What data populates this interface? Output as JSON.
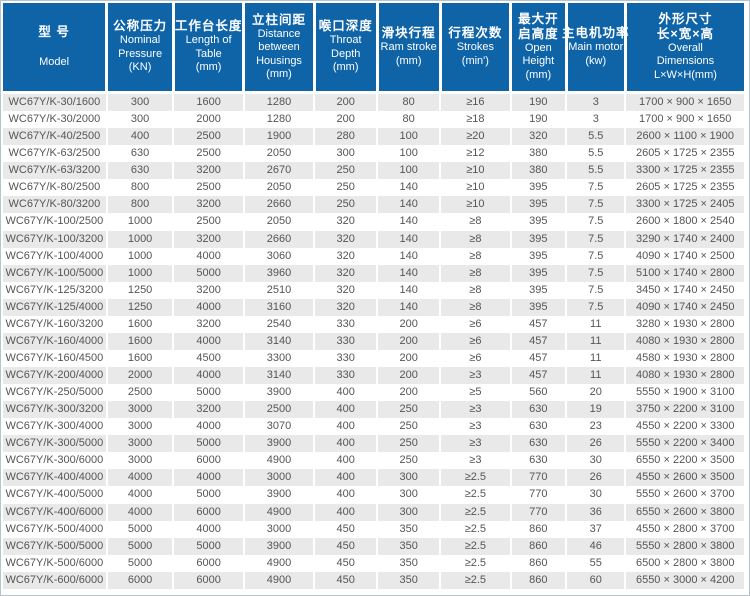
{
  "colors": {
    "header_bg": "#0f64a8",
    "header_text": "#ffffff",
    "row_alt_bg": "#e9e9e9",
    "row_bg": "#ffffff",
    "body_text": "#555555"
  },
  "chart_data": {
    "type": "table",
    "columns": [
      {
        "id": "model",
        "cn": [
          "型 号"
        ],
        "en": [
          "Model"
        ]
      },
      {
        "id": "pressure",
        "cn": [
          "公称压力"
        ],
        "en": [
          "Nominal",
          "Pressure",
          "(KN)"
        ]
      },
      {
        "id": "length",
        "cn": [
          "工作台长度"
        ],
        "en": [
          "Length of",
          "Table",
          "(mm)"
        ]
      },
      {
        "id": "distance",
        "cn": [
          "立柱间距"
        ],
        "en": [
          "Distance",
          "between",
          "Housings",
          "(mm)"
        ]
      },
      {
        "id": "throat",
        "cn": [
          "喉口深度"
        ],
        "en": [
          "Throat",
          "Depth",
          "(mm)"
        ]
      },
      {
        "id": "ram",
        "cn": [
          "滑块行程"
        ],
        "en": [
          "Ram stroke",
          "(mm)"
        ]
      },
      {
        "id": "strokes",
        "cn": [
          "行程次数"
        ],
        "en": [
          "Strokes",
          "(min')"
        ]
      },
      {
        "id": "open",
        "cn": [
          "最大开",
          "启高度"
        ],
        "en": [
          "Open",
          "Height",
          "(mm)"
        ]
      },
      {
        "id": "motor",
        "cn": [
          "主电机功率"
        ],
        "en": [
          "Main motor",
          "(kw)"
        ]
      },
      {
        "id": "dims",
        "cn": [
          "外形尺寸",
          "长×宽×高"
        ],
        "en": [
          "Overall",
          "Dimensions",
          "L×W×H(mm)"
        ]
      }
    ],
    "rows": [
      [
        "WC67Y/K-30/1600",
        "300",
        "1600",
        "1280",
        "200",
        "80",
        "≥16",
        "190",
        "3",
        "1700 × 900 × 1650"
      ],
      [
        "WC67Y/K-30/2000",
        "300",
        "2000",
        "1280",
        "200",
        "80",
        "≥18",
        "190",
        "3",
        "1700 × 900 × 1650"
      ],
      [
        "WC67Y/K-40/2500",
        "400",
        "2500",
        "1900",
        "280",
        "100",
        "≥20",
        "320",
        "5.5",
        "2600 × 1100 × 1900"
      ],
      [
        "WC67Y/K-63/2500",
        "630",
        "2500",
        "2050",
        "300",
        "100",
        "≥12",
        "380",
        "5.5",
        "2605 × 1725 × 2355"
      ],
      [
        "WC67Y/K-63/3200",
        "630",
        "3200",
        "2670",
        "250",
        "100",
        "≥10",
        "380",
        "5.5",
        "3300 × 1725 × 2355"
      ],
      [
        "WC67Y/K-80/2500",
        "800",
        "2500",
        "2050",
        "250",
        "140",
        "≥10",
        "395",
        "7.5",
        "2605 × 1725 × 2355"
      ],
      [
        "WC67Y/K-80/3200",
        "800",
        "3200",
        "2660",
        "250",
        "140",
        "≥10",
        "395",
        "7.5",
        "3300 × 1725 × 2405"
      ],
      [
        "WC67Y/K-100/2500",
        "1000",
        "2500",
        "2050",
        "320",
        "140",
        "≥8",
        "395",
        "7.5",
        "2600 × 1800 × 2540"
      ],
      [
        "WC67Y/K-100/3200",
        "1000",
        "3200",
        "2660",
        "320",
        "140",
        "≥8",
        "395",
        "7.5",
        "3290 × 1740 × 2400"
      ],
      [
        "WC67Y/K-100/4000",
        "1000",
        "4000",
        "3060",
        "320",
        "140",
        "≥8",
        "395",
        "7.5",
        "4090 × 1740 × 2500"
      ],
      [
        "WC67Y/K-100/5000",
        "1000",
        "5000",
        "3960",
        "320",
        "140",
        "≥8",
        "395",
        "7.5",
        "5100 × 1740 × 2800"
      ],
      [
        "WC67Y/K-125/3200",
        "1250",
        "3200",
        "2510",
        "320",
        "140",
        "≥8",
        "395",
        "7.5",
        "3450 × 1740 × 2450"
      ],
      [
        "WC67Y/K-125/4000",
        "1250",
        "4000",
        "3160",
        "320",
        "140",
        "≥8",
        "395",
        "7.5",
        "4090 × 1740 × 2450"
      ],
      [
        "WC67Y/K-160/3200",
        "1600",
        "3200",
        "2540",
        "330",
        "200",
        "≥6",
        "457",
        "11",
        "3280 × 1930 × 2800"
      ],
      [
        "WC67Y/K-160/4000",
        "1600",
        "4000",
        "3140",
        "330",
        "200",
        "≥6",
        "457",
        "11",
        "4080 × 1930 × 2800"
      ],
      [
        "WC67Y/K-160/4500",
        "1600",
        "4500",
        "3300",
        "330",
        "200",
        "≥6",
        "457",
        "11",
        "4580 × 1930 × 2800"
      ],
      [
        "WC67Y/K-200/4000",
        "2000",
        "4000",
        "3140",
        "330",
        "200",
        "≥3",
        "457",
        "11",
        "4080 × 1930 × 2800"
      ],
      [
        "WC67Y/K-250/5000",
        "2500",
        "5000",
        "3900",
        "400",
        "200",
        "≥5",
        "560",
        "20",
        "5550 × 1900 × 3100"
      ],
      [
        "WC67Y/K-300/3200",
        "3000",
        "3200",
        "2500",
        "400",
        "250",
        "≥3",
        "630",
        "19",
        "3750 × 2200 × 3100"
      ],
      [
        "WC67Y/K-300/4000",
        "3000",
        "4000",
        "3070",
        "400",
        "250",
        "≥3",
        "630",
        "23",
        "4550 × 2200 × 3300"
      ],
      [
        "WC67Y/K-300/5000",
        "3000",
        "5000",
        "3900",
        "400",
        "250",
        "≥3",
        "630",
        "26",
        "5550 × 2200 × 3400"
      ],
      [
        "WC67Y/K-300/6000",
        "3000",
        "6000",
        "4900",
        "400",
        "250",
        "≥3",
        "630",
        "30",
        "6550 × 2200 × 3500"
      ],
      [
        "WC67Y/K-400/4000",
        "4000",
        "4000",
        "3000",
        "400",
        "300",
        "≥2.5",
        "770",
        "26",
        "4550 × 2600 × 3500"
      ],
      [
        "WC67Y/K-400/5000",
        "4000",
        "5000",
        "3900",
        "400",
        "300",
        "≥2.5",
        "770",
        "30",
        "5550 × 2600 × 3700"
      ],
      [
        "WC67Y/K-400/6000",
        "4000",
        "6000",
        "4900",
        "400",
        "300",
        "≥2.5",
        "770",
        "36",
        "6550 × 2600 × 3800"
      ],
      [
        "WC67Y/K-500/4000",
        "5000",
        "4000",
        "3000",
        "450",
        "350",
        "≥2.5",
        "860",
        "37",
        "4550 × 2800 × 3700"
      ],
      [
        "WC67Y/K-500/5000",
        "5000",
        "5000",
        "3900",
        "450",
        "350",
        "≥2.5",
        "860",
        "46",
        "5550 × 2800 × 3800"
      ],
      [
        "WC67Y/K-500/6000",
        "5000",
        "6000",
        "4900",
        "450",
        "350",
        "≥2.5",
        "860",
        "55",
        "6500 × 2800 × 3800"
      ],
      [
        "WC67Y/K-600/6000",
        "6000",
        "6000",
        "4900",
        "450",
        "350",
        "≥2.5",
        "860",
        "60",
        "6550 × 3000 × 4200"
      ]
    ]
  }
}
